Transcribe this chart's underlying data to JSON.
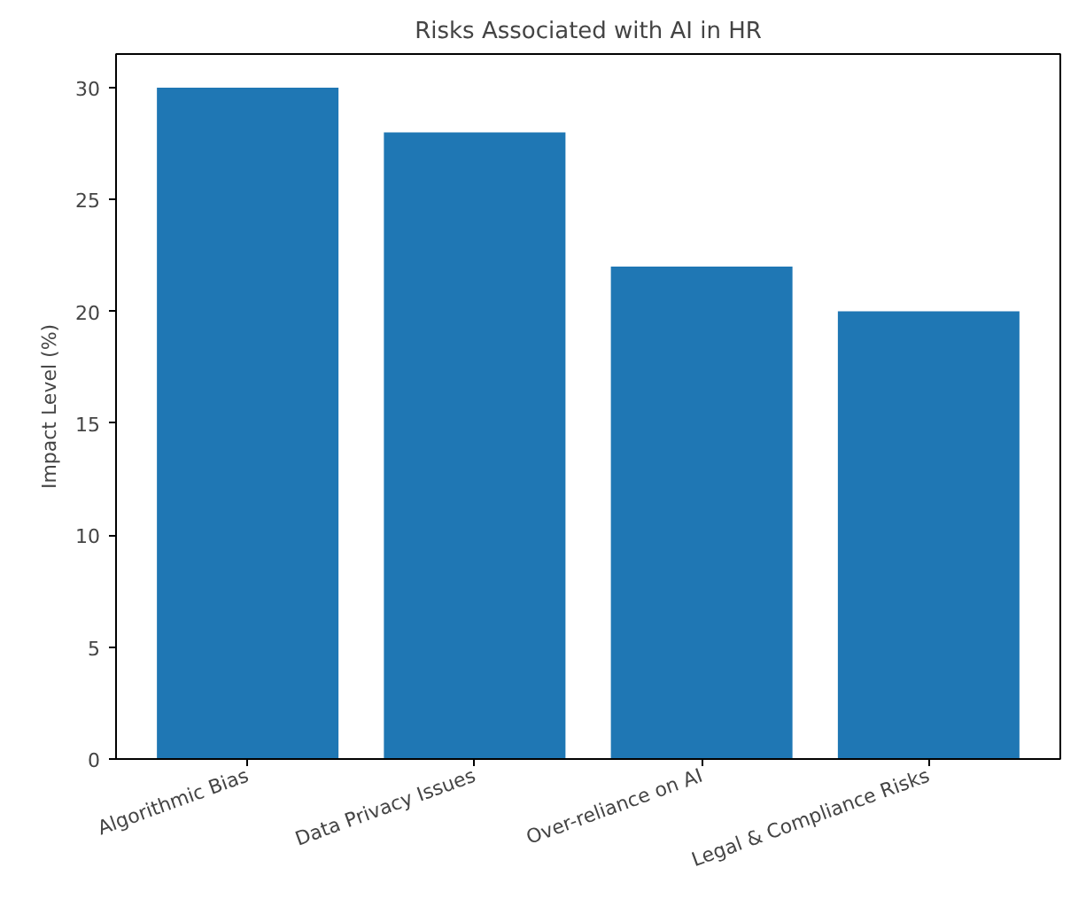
{
  "chart_data": {
    "type": "bar",
    "title": "Risks Associated with AI in HR",
    "ylabel": "Impact Level (%)",
    "categories": [
      "Algorithmic Bias",
      "Data Privacy Issues",
      "Over-reliance on AI",
      "Legal & Compliance Risks"
    ],
    "values": [
      30,
      28,
      22,
      20
    ],
    "color": "#1f77b4",
    "ylim": [
      0,
      31.5
    ],
    "yticks": [
      0,
      5,
      10,
      15,
      20,
      25,
      30
    ],
    "grid": false
  }
}
